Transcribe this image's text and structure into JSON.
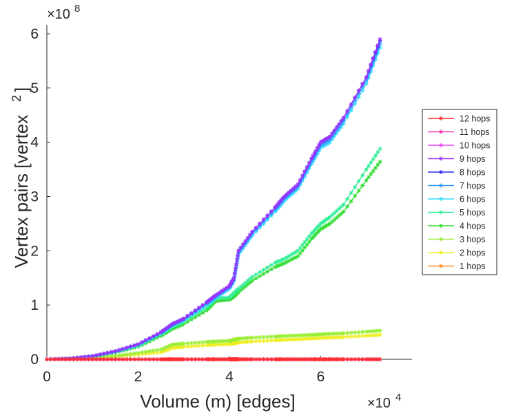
{
  "chart_data": {
    "type": "line",
    "title": "",
    "xlabel": "Volume (m) [edges]",
    "ylabel": "Vertex pairs [vertex",
    "ylabel_superscript": "2",
    "ylabel_close": "]",
    "xlim": [
      0,
      80000
    ],
    "ylim": [
      0,
      600000000
    ],
    "x_exponent_base": "×10",
    "x_exponent_power": "4",
    "y_exponent_base": "×10",
    "y_exponent_power": "8",
    "xticks": [
      0,
      20000,
      40000,
      60000
    ],
    "xtick_labels": [
      "0",
      "2",
      "4",
      "6"
    ],
    "yticks": [
      0,
      100000000,
      200000000,
      300000000,
      400000000,
      500000000,
      600000000
    ],
    "ytick_labels": [
      "0",
      "1",
      "2",
      "3",
      "4",
      "5",
      "6"
    ],
    "grid": false,
    "legend_position": "right",
    "x": [
      0,
      5000,
      10000,
      15000,
      20000,
      25000,
      27500,
      30000,
      35000,
      37000,
      40000,
      41000,
      42000,
      45000,
      50000,
      52000,
      55000,
      58000,
      60000,
      62000,
      65000,
      70000,
      73000
    ],
    "series": [
      {
        "name": "12 hops",
        "color": "#ff2d2d",
        "values": [
          0,
          0,
          0,
          0,
          0,
          0,
          0,
          0,
          0,
          0,
          0,
          0,
          0,
          0,
          0,
          0,
          0,
          0,
          0,
          0,
          0,
          0,
          0
        ]
      },
      {
        "name": "11 hops",
        "color": "#ff33aa",
        "values": [
          0,
          0,
          0,
          0,
          0,
          0,
          0,
          0,
          0,
          0,
          0,
          0,
          0,
          0,
          0,
          0,
          0,
          0,
          0,
          0,
          0,
          0,
          0
        ]
      },
      {
        "name": "10 hops",
        "color": "#ee44ff",
        "values": [
          0,
          0,
          0,
          0,
          0,
          0,
          0,
          0,
          0,
          0,
          0,
          0,
          0,
          0,
          0,
          0,
          0,
          0,
          0,
          0,
          0,
          0,
          0
        ]
      },
      {
        "name": "9 hops",
        "color": "#9933ff",
        "values": [
          0,
          1500000,
          6000000,
          15000000,
          28000000,
          50000000,
          65000000,
          75000000,
          105000000,
          118000000,
          135000000,
          150000000,
          200000000,
          235000000,
          280000000,
          300000000,
          322000000,
          370000000,
          400000000,
          410000000,
          445000000,
          520000000,
          590000000
        ]
      },
      {
        "name": "8 hops",
        "color": "#2a2aee",
        "values": [
          0,
          1500000,
          6000000,
          15000000,
          28000000,
          50000000,
          65000000,
          75000000,
          105000000,
          118000000,
          135000000,
          150000000,
          200000000,
          235000000,
          280000000,
          300000000,
          322000000,
          370000000,
          400000000,
          410000000,
          445000000,
          520000000,
          588000000
        ]
      },
      {
        "name": "7 hops",
        "color": "#3399ff",
        "values": [
          0,
          1400000,
          5800000,
          14500000,
          27000000,
          49000000,
          64000000,
          74000000,
          103000000,
          116000000,
          133000000,
          148000000,
          197000000,
          232000000,
          276000000,
          296000000,
          318000000,
          365000000,
          395000000,
          405000000,
          440000000,
          515000000,
          582000000
        ]
      },
      {
        "name": "6 hops",
        "color": "#33ddff",
        "values": [
          0,
          1300000,
          5500000,
          14000000,
          26000000,
          48000000,
          62000000,
          72000000,
          100000000,
          113000000,
          130000000,
          145000000,
          193000000,
          228000000,
          272000000,
          292000000,
          314000000,
          360000000,
          390000000,
          400000000,
          434000000,
          508000000,
          575000000
        ]
      },
      {
        "name": "5 hops",
        "color": "#33ee99",
        "values": [
          0,
          1300000,
          5500000,
          13500000,
          25000000,
          46000000,
          60000000,
          70000000,
          95000000,
          112000000,
          114000000,
          122000000,
          130000000,
          152000000,
          178000000,
          185000000,
          200000000,
          232000000,
          250000000,
          262000000,
          285000000,
          350000000,
          388000000
        ]
      },
      {
        "name": "4 hops",
        "color": "#33dd33",
        "values": [
          0,
          1200000,
          5000000,
          12500000,
          23000000,
          43000000,
          56000000,
          65000000,
          90000000,
          107000000,
          110000000,
          116000000,
          124000000,
          145000000,
          170000000,
          177000000,
          190000000,
          222000000,
          240000000,
          250000000,
          272000000,
          330000000,
          364000000
        ]
      },
      {
        "name": "3 hops",
        "color": "#99ee33",
        "values": [
          0,
          500000,
          2500000,
          6000000,
          12000000,
          18000000,
          27000000,
          29000000,
          32000000,
          33000000,
          34000000,
          36000000,
          38000000,
          40000000,
          42000000,
          43000000,
          44000000,
          45000000,
          46000000,
          47000000,
          48000000,
          51000000,
          53000000
        ]
      },
      {
        "name": "2 hops",
        "color": "#eeee22",
        "values": [
          0,
          400000,
          2000000,
          5000000,
          9000000,
          13000000,
          21000000,
          23000000,
          26000000,
          27000000,
          28000000,
          29500000,
          31000000,
          33000000,
          35000000,
          36000000,
          37000000,
          38500000,
          39500000,
          40000000,
          41000000,
          43500000,
          45000000
        ]
      },
      {
        "name": "1 hops",
        "color": "#ff8822",
        "values": [
          0,
          0,
          0,
          0,
          0,
          0,
          0,
          0,
          0,
          0,
          0,
          0,
          0,
          0,
          0,
          0,
          0,
          0,
          0,
          0,
          0,
          0,
          0
        ]
      }
    ]
  }
}
